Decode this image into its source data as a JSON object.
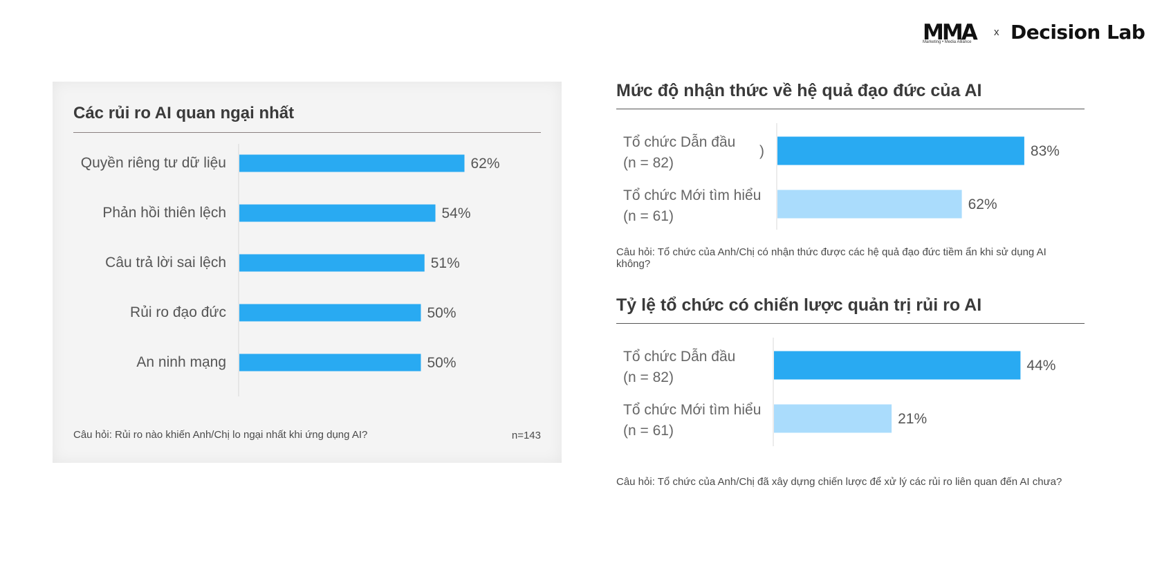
{
  "header": {
    "logo_mma": "MMA",
    "logo_mma_sub": "Marketing • Media Alliance",
    "logo_separator": "x",
    "logo_partner": "Decision Lab"
  },
  "colors": {
    "dark_bar": "#29aaf2",
    "light_bar": "#aadcfc",
    "axis": "#d8d8d8"
  },
  "chart_data": [
    {
      "type": "bar",
      "orientation": "horizontal",
      "title": "Các rủi ro AI quan ngại nhất",
      "categories": [
        "Quyền riêng tư dữ liệu",
        "Phản hồi thiên lệch",
        "Câu trả lời sai lệch",
        "Rủi ro đạo đức",
        "An ninh mạng"
      ],
      "values": [
        62,
        54,
        51,
        50,
        50
      ],
      "value_labels": [
        "62%",
        "54%",
        "51%",
        "50%",
        "50%"
      ],
      "question": "Câu hỏi: Rủi ro nào khiến Anh/Chị lo ngại nhất khi ứng dụng AI?",
      "sample": "n=143"
    },
    {
      "type": "bar",
      "orientation": "horizontal",
      "title": "Mức độ nhận thức về hệ quả đạo đức của AI",
      "categories": [
        [
          "Tổ chức Dẫn đầu",
          "(n = 82)"
        ],
        [
          "Tổ chức Mới tìm hiểu",
          "(n = 61)"
        ]
      ],
      "values": [
        83,
        62
      ],
      "value_labels": [
        "83%",
        "62%"
      ],
      "stray_mark": ")",
      "question_lines": [
        "Câu hỏi: Tổ chức của Anh/Chị có nhận thức được các hệ quả đạo đức tiềm ẩn khi sử dụng AI",
        "không?"
      ]
    },
    {
      "type": "bar",
      "orientation": "horizontal",
      "title": "Tỷ lệ tổ chức có chiến lược quản trị rủi ro AI",
      "categories": [
        [
          "Tổ chức Dẫn đầu",
          "(n = 82)"
        ],
        [
          "Tổ chức Mới tìm hiểu",
          "(n = 61)"
        ]
      ],
      "values": [
        44,
        21
      ],
      "value_labels": [
        "44%",
        "21%"
      ],
      "question": "Câu hỏi: Tổ chức của Anh/Chị đã xây dựng chiến lược để xử lý các rủi ro liên quan đến AI chưa?"
    }
  ]
}
